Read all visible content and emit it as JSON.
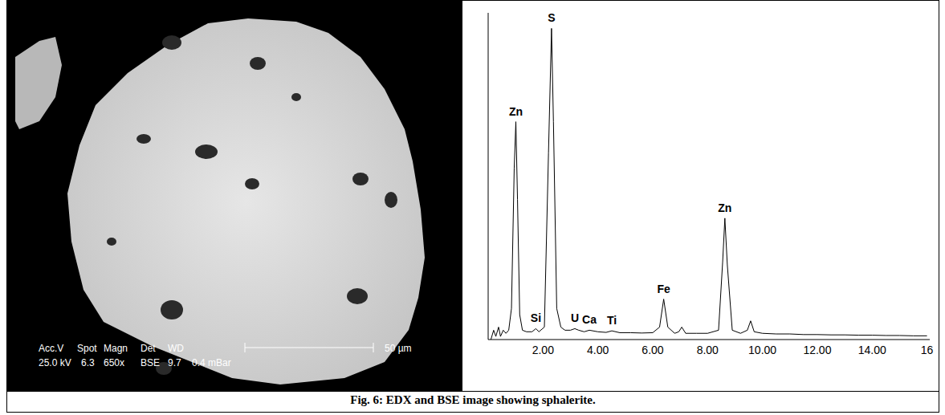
{
  "caption": "Fig. 6: EDX and BSE image showing sphalerite.",
  "image": {
    "info_labels": [
      "Acc.V",
      "Spot",
      "Magn",
      "Det",
      "WD"
    ],
    "info_values": [
      "25.0 kV",
      "6.3",
      "650x",
      "BSE",
      "9.7",
      "0.4 mBar"
    ],
    "scale_bar": "50 µm"
  },
  "chart_data": {
    "type": "line",
    "color": "#000000",
    "grid": false,
    "tick_labels": "x",
    "xlim": [
      0,
      16.1
    ],
    "xticks": [
      {
        "value": 2,
        "label": "2.00"
      },
      {
        "value": 4,
        "label": "4.00"
      },
      {
        "value": 6,
        "label": "6.00"
      },
      {
        "value": 8,
        "label": "8.00"
      },
      {
        "value": 10,
        "label": "10.00"
      },
      {
        "value": 12,
        "label": "12.00"
      },
      {
        "value": 14,
        "label": "14.00"
      },
      16
    ],
    "ylim": [
      0,
      105
    ],
    "yticks": [],
    "x": [
      0.1,
      0.2,
      0.28,
      0.38,
      0.45,
      0.55,
      0.65,
      0.75,
      0.85,
      0.95,
      1.01,
      1.07,
      1.15,
      1.25,
      1.4,
      1.6,
      1.74,
      1.85,
      2.05,
      2.2,
      2.31,
      2.38,
      2.5,
      2.65,
      2.8,
      3.0,
      3.16,
      3.3,
      3.5,
      3.69,
      4.0,
      4.3,
      4.51,
      4.8,
      5.2,
      5.6,
      6.0,
      6.25,
      6.4,
      6.55,
      6.8,
      6.95,
      7.06,
      7.2,
      7.6,
      8.0,
      8.4,
      8.55,
      8.63,
      8.72,
      8.9,
      9.2,
      9.45,
      9.57,
      9.7,
      10.0,
      10.5,
      11.0,
      11.5,
      12.0,
      12.5,
      13.0,
      13.5,
      14.0,
      14.5,
      15.0,
      15.5,
      16.0
    ],
    "values": [
      0,
      3,
      1,
      4,
      1,
      3,
      2,
      3,
      10,
      55,
      70,
      45,
      8,
      3,
      2.5,
      2.5,
      3.5,
      2.5,
      4,
      60,
      100,
      70,
      10,
      4,
      3,
      3,
      3.5,
      3,
      2.5,
      3,
      2.5,
      2.3,
      2.8,
      2.2,
      2.2,
      2.1,
      2.2,
      4,
      13,
      4,
      2,
      2.5,
      4,
      2,
      2,
      2,
      3,
      25,
      39,
      24,
      3,
      2,
      3,
      6,
      2.5,
      2,
      1.8,
      1.8,
      1.6,
      1.6,
      1.5,
      1.5,
      1.4,
      1.4,
      1.3,
      1.3,
      1.2,
      1.2
    ],
    "annotations": [
      {
        "text": "Zn",
        "x": 1.01
      },
      {
        "text": "S",
        "x": 2.31
      },
      {
        "text": "Si",
        "x": 1.74
      },
      {
        "text": "U",
        "x": 3.16
      },
      {
        "text": "Ca",
        "x": 3.69
      },
      {
        "text": "Ti",
        "x": 4.51
      },
      {
        "text": "Fe",
        "x": 6.4
      },
      {
        "text": "Zn",
        "x": 8.63
      }
    ]
  }
}
